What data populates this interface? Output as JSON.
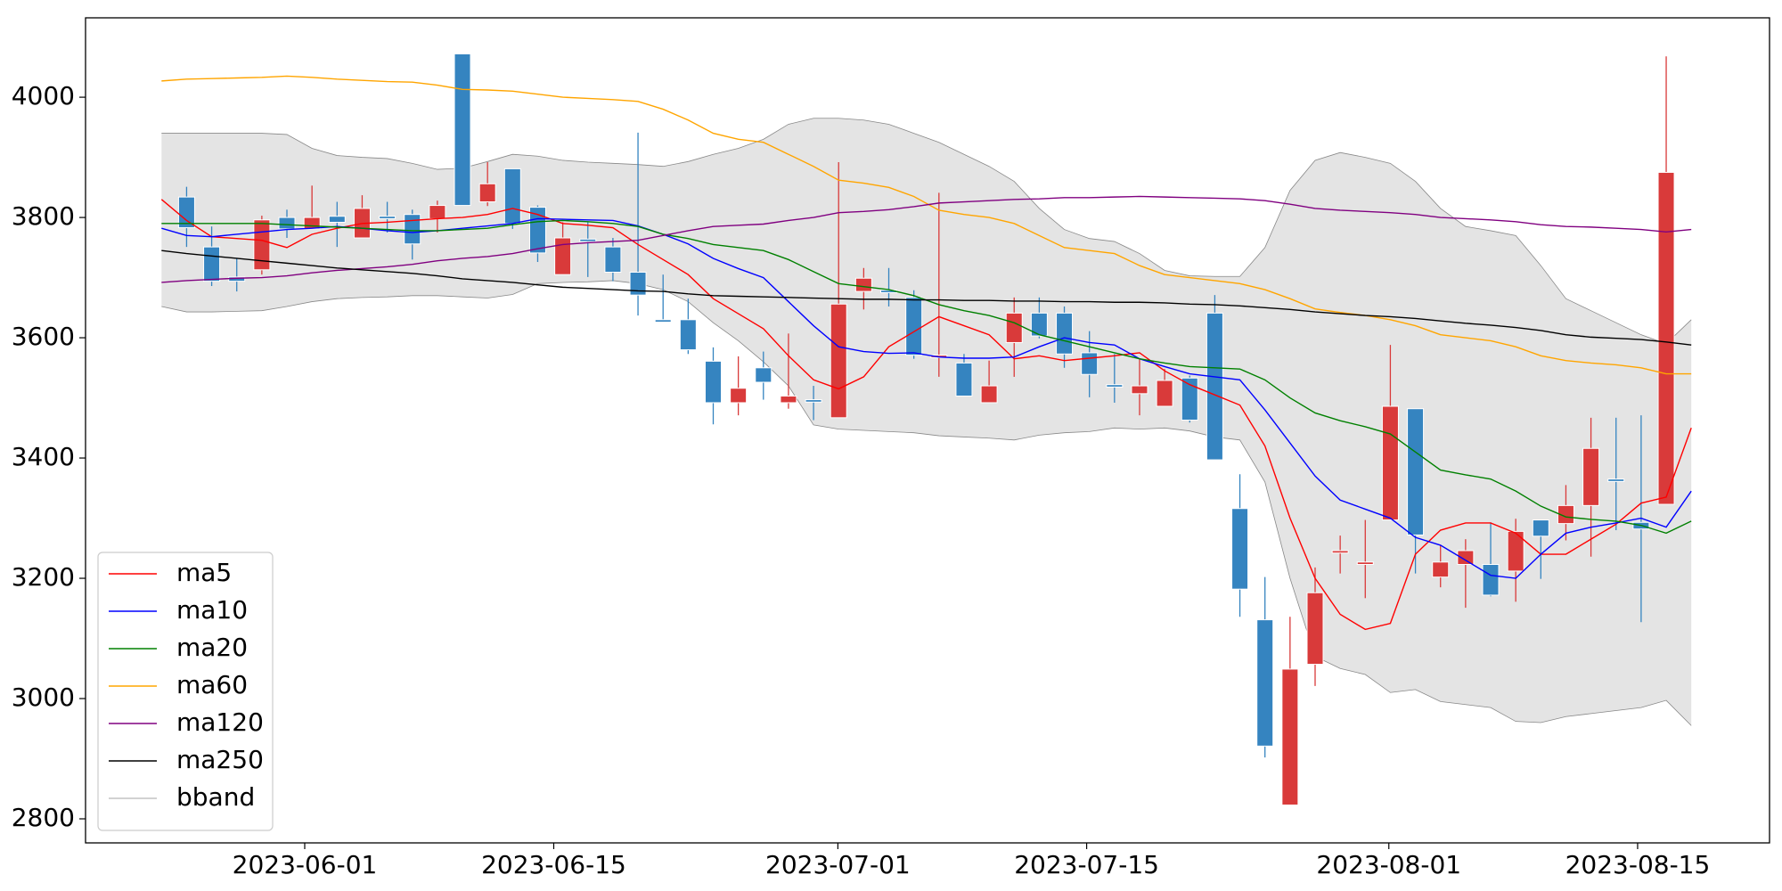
{
  "chart_data": {
    "type": "candlestick",
    "xlim": [
      -4.03,
      63.12
    ],
    "xticks": [
      {
        "value": 4.71,
        "label": "2023-06-01"
      },
      {
        "value": 14.64,
        "label": "2023-06-15"
      },
      {
        "value": 25.97,
        "label": "2023-07-01"
      },
      {
        "value": 35.89,
        "label": "2023-07-15"
      },
      {
        "value": 47.94,
        "label": "2023-08-01"
      },
      {
        "value": 57.86,
        "label": "2023-08-15"
      }
    ],
    "ylim": [
      2760,
      4132
    ],
    "yticks": [
      2800,
      3000,
      3200,
      3400,
      3600,
      3800,
      4000
    ],
    "legend": "lower left",
    "up_color": "#d93a3a",
    "down_color": "#3584c0",
    "candles": {
      "x": [
        0,
        1,
        2,
        3,
        4,
        5,
        6,
        7,
        8,
        9,
        10,
        11,
        12,
        13,
        14,
        15,
        16,
        17,
        18,
        19,
        20,
        21,
        22,
        23,
        24,
        25,
        26,
        27,
        28,
        29,
        30,
        31,
        32,
        33,
        34,
        35,
        36,
        37,
        38,
        39,
        40,
        41,
        42,
        43,
        44,
        45,
        46,
        47,
        48,
        49,
        50,
        51,
        52,
        53,
        54,
        55,
        56,
        57,
        58,
        59
      ],
      "open": [
        3834,
        3751,
        3701,
        3713,
        3800,
        3781,
        3802,
        3766,
        3802,
        3805,
        3798,
        4072,
        3826,
        3881,
        3817,
        3705,
        3764,
        3751,
        3709,
        3630,
        3630,
        3561,
        3492,
        3550,
        3492,
        3497,
        3467,
        3677,
        3679,
        3667,
        3567,
        3558,
        3492,
        3592,
        3641,
        3641,
        3575,
        3522,
        3507,
        3486,
        3533,
        3641,
        3316,
        3131,
        2823,
        3057,
        3242,
        3223,
        3297,
        3482,
        3202,
        3223,
        3223,
        3212,
        3297,
        3291,
        3321,
        3365,
        3293,
        3323
      ],
      "high": [
        3851,
        3785,
        3732,
        3803,
        3813,
        3853,
        3826,
        3837,
        3826,
        3813,
        3828,
        4072,
        3892,
        3881,
        3820,
        3792,
        3792,
        3766,
        3941,
        3705,
        3665,
        3584,
        3569,
        3577,
        3607,
        3520,
        3892,
        3716,
        3716,
        3679,
        3841,
        3573,
        3562,
        3667,
        3667,
        3652,
        3611,
        3573,
        3565,
        3548,
        3537,
        3671,
        3373,
        3202,
        3136,
        3218,
        3271,
        3297,
        3588,
        3482,
        3255,
        3265,
        3293,
        3299,
        3297,
        3355,
        3467,
        3467,
        3471,
        4068
      ],
      "low": [
        3751,
        3686,
        3677,
        3705,
        3766,
        3781,
        3751,
        3766,
        3775,
        3730,
        3775,
        3820,
        3819,
        3781,
        3726,
        3705,
        3701,
        3694,
        3637,
        3626,
        3573,
        3456,
        3471,
        3497,
        3482,
        3463,
        3467,
        3647,
        3652,
        3565,
        3535,
        3503,
        3492,
        3535,
        3599,
        3550,
        3501,
        3492,
        3471,
        3486,
        3459,
        3397,
        3136,
        2902,
        2823,
        3021,
        3208,
        3167,
        3297,
        3208,
        3185,
        3151,
        3170,
        3161,
        3199,
        3263,
        3236,
        3280,
        3127,
        3323
      ],
      "close": [
        3783,
        3694,
        3694,
        3796,
        3781,
        3800,
        3792,
        3815,
        3798,
        3756,
        3820,
        3820,
        3856,
        3790,
        3741,
        3766,
        3760,
        3709,
        3671,
        3626,
        3580,
        3492,
        3516,
        3526,
        3503,
        3493,
        3656,
        3699,
        3675,
        3571,
        3571,
        3503,
        3520,
        3641,
        3603,
        3573,
        3539,
        3518,
        3520,
        3529,
        3463,
        3397,
        3182,
        2921,
        3049,
        3176,
        3246,
        3227,
        3486,
        3272,
        3227,
        3246,
        3172,
        3278,
        3270,
        3321,
        3416,
        3361,
        3282,
        3875
      ]
    },
    "x": [
      -1,
      0,
      1,
      2,
      3,
      4,
      5,
      6,
      7,
      8,
      9,
      10,
      11,
      12,
      13,
      14,
      15,
      16,
      17,
      18,
      19,
      20,
      21,
      22,
      23,
      24,
      25,
      26,
      27,
      28,
      29,
      30,
      31,
      32,
      33,
      34,
      35,
      36,
      37,
      38,
      39,
      40,
      41,
      42,
      43,
      44,
      45,
      46,
      47,
      48,
      49,
      50,
      51,
      52,
      53,
      54,
      55,
      56,
      57,
      58,
      59,
      60
    ],
    "series": [
      {
        "name": "ma5",
        "color": "#ff0000",
        "values": [
          3830,
          3795,
          3768,
          3765,
          3762,
          3750,
          3772,
          3782,
          3790,
          3792,
          3795,
          3798,
          3800,
          3805,
          3815,
          3805,
          3790,
          3787,
          3783,
          3755,
          3730,
          3705,
          3665,
          3640,
          3615,
          3570,
          3530,
          3515,
          3535,
          3585,
          3610,
          3635,
          3620,
          3605,
          3565,
          3570,
          3562,
          3566,
          3570,
          3575,
          3545,
          3522,
          3505,
          3488,
          3420,
          3300,
          3200,
          3140,
          3115,
          3125,
          3240,
          3280,
          3292,
          3292,
          3275,
          3240,
          3240,
          3265,
          3290,
          3325,
          3335,
          3450
        ]
      },
      {
        "name": "ma10",
        "color": "#0000ff",
        "values": [
          3782,
          3770,
          3768,
          3772,
          3776,
          3780,
          3782,
          3785,
          3782,
          3778,
          3775,
          3778,
          3782,
          3786,
          3790,
          3798,
          3797,
          3796,
          3795,
          3786,
          3772,
          3756,
          3732,
          3715,
          3700,
          3660,
          3620,
          3585,
          3577,
          3574,
          3575,
          3568,
          3566,
          3566,
          3568,
          3585,
          3600,
          3592,
          3588,
          3565,
          3552,
          3540,
          3535,
          3530,
          3480,
          3425,
          3370,
          3330,
          3315,
          3300,
          3268,
          3255,
          3230,
          3205,
          3200,
          3240,
          3275,
          3285,
          3292,
          3300,
          3285,
          3345
        ]
      },
      {
        "name": "ma20",
        "color": "#008000",
        "values": [
          3790,
          3790,
          3790,
          3790,
          3790,
          3788,
          3786,
          3784,
          3782,
          3780,
          3778,
          3778,
          3780,
          3782,
          3788,
          3793,
          3795,
          3793,
          3790,
          3785,
          3772,
          3765,
          3755,
          3750,
          3745,
          3730,
          3710,
          3690,
          3685,
          3680,
          3670,
          3655,
          3645,
          3637,
          3625,
          3605,
          3595,
          3585,
          3575,
          3565,
          3558,
          3552,
          3550,
          3548,
          3530,
          3500,
          3475,
          3462,
          3452,
          3440,
          3410,
          3380,
          3372,
          3365,
          3345,
          3320,
          3302,
          3298,
          3295,
          3288,
          3275,
          3295
        ]
      },
      {
        "name": "ma60",
        "color": "#ffa500",
        "values": [
          4027,
          4030,
          4031,
          4032,
          4033,
          4035,
          4033,
          4030,
          4028,
          4026,
          4025,
          4020,
          4013,
          4012,
          4010,
          4005,
          4000,
          3998,
          3996,
          3993,
          3980,
          3962,
          3940,
          3930,
          3925,
          3905,
          3885,
          3862,
          3857,
          3850,
          3835,
          3812,
          3805,
          3800,
          3790,
          3770,
          3750,
          3745,
          3740,
          3720,
          3705,
          3700,
          3695,
          3690,
          3680,
          3665,
          3648,
          3642,
          3637,
          3630,
          3620,
          3605,
          3600,
          3595,
          3585,
          3570,
          3562,
          3558,
          3555,
          3550,
          3540,
          3540
        ]
      },
      {
        "name": "ma120",
        "color": "#800080",
        "values": [
          3692,
          3695,
          3697,
          3699,
          3700,
          3703,
          3708,
          3712,
          3715,
          3718,
          3722,
          3728,
          3732,
          3735,
          3740,
          3748,
          3755,
          3758,
          3760,
          3762,
          3770,
          3778,
          3785,
          3787,
          3789,
          3795,
          3800,
          3808,
          3810,
          3813,
          3818,
          3824,
          3826,
          3828,
          3830,
          3831,
          3833,
          3833,
          3834,
          3835,
          3834,
          3833,
          3832,
          3831,
          3828,
          3822,
          3815,
          3812,
          3810,
          3808,
          3805,
          3800,
          3798,
          3796,
          3793,
          3788,
          3785,
          3784,
          3782,
          3780,
          3776,
          3780
        ]
      },
      {
        "name": "ma250",
        "color": "#000000",
        "values": [
          3745,
          3740,
          3736,
          3732,
          3728,
          3724,
          3720,
          3716,
          3713,
          3710,
          3707,
          3703,
          3698,
          3695,
          3692,
          3688,
          3684,
          3682,
          3680,
          3678,
          3677,
          3673,
          3670,
          3669,
          3668,
          3667,
          3666,
          3665,
          3664,
          3664,
          3663,
          3663,
          3662,
          3662,
          3661,
          3661,
          3660,
          3660,
          3659,
          3659,
          3658,
          3656,
          3655,
          3653,
          3650,
          3647,
          3643,
          3640,
          3637,
          3635,
          3632,
          3628,
          3624,
          3621,
          3617,
          3612,
          3605,
          3601,
          3599,
          3597,
          3593,
          3588
        ]
      }
    ],
    "bband": {
      "name": "bband",
      "color": "#888888",
      "fill": "#e4e4e4",
      "upper": [
        3940,
        3940,
        3940,
        3940,
        3940,
        3938,
        3915,
        3903,
        3900,
        3898,
        3890,
        3880,
        3882,
        3893,
        3905,
        3902,
        3895,
        3892,
        3890,
        3888,
        3885,
        3893,
        3905,
        3915,
        3930,
        3955,
        3965,
        3965,
        3962,
        3955,
        3940,
        3925,
        3905,
        3885,
        3860,
        3815,
        3780,
        3765,
        3760,
        3740,
        3712,
        3703,
        3702,
        3702,
        3750,
        3845,
        3895,
        3908,
        3900,
        3890,
        3860,
        3815,
        3785,
        3778,
        3770,
        3720,
        3665,
        3645,
        3625,
        3605,
        3590,
        3630
      ],
      "lower": [
        3652,
        3643,
        3643,
        3644,
        3645,
        3652,
        3660,
        3665,
        3667,
        3668,
        3670,
        3670,
        3668,
        3666,
        3672,
        3690,
        3692,
        3693,
        3695,
        3690,
        3680,
        3660,
        3625,
        3595,
        3560,
        3520,
        3455,
        3448,
        3446,
        3444,
        3442,
        3437,
        3435,
        3433,
        3430,
        3438,
        3442,
        3444,
        3450,
        3448,
        3450,
        3445,
        3435,
        3430,
        3360,
        3200,
        3070,
        3050,
        3040,
        3010,
        3015,
        2995,
        2990,
        2985,
        2962,
        2960,
        2970,
        2975,
        2980,
        2985,
        2997,
        2955
      ]
    }
  }
}
